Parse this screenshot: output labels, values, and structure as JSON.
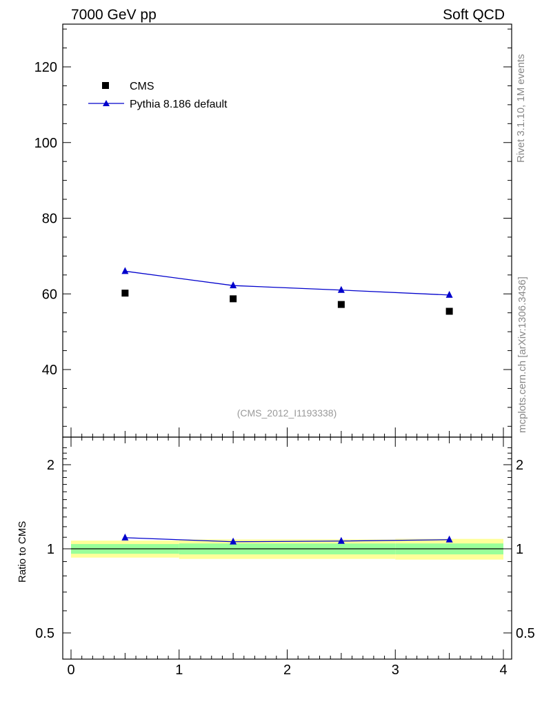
{
  "header": {
    "left": "7000 GeV pp",
    "right": "Soft QCD"
  },
  "side_labels": {
    "rivet": "Rivet 3.1.10,  1M events",
    "source": "mcplots.cern.ch [arXiv:1306.3436]"
  },
  "analysis_tag": "(CMS_2012_I1193338)",
  "colors": {
    "data": "#000000",
    "mc": "#0000cc",
    "band_inner": "#99ff99",
    "band_outer": "#ffff99",
    "tag_text": "#999999"
  },
  "chart_data": [
    {
      "type": "scatter",
      "panel": "main",
      "xlim": [
        0,
        4
      ],
      "ylim": [
        23,
        131
      ],
      "yticks": [
        40,
        60,
        80,
        100,
        120
      ],
      "yticklabels": [
        "40",
        "60",
        "80",
        "100",
        "120"
      ],
      "legend_placement": "top-left",
      "series": [
        {
          "name": "CMS",
          "marker": "square",
          "x": [
            0.5,
            1.5,
            2.5,
            3.5
          ],
          "y": [
            60.2,
            58.7,
            57.2,
            55.4
          ]
        },
        {
          "name": "Pythia 8.186 default",
          "marker": "triangle",
          "line": true,
          "x": [
            0.5,
            1.5,
            2.5,
            3.5
          ],
          "y": [
            66.0,
            62.2,
            61.0,
            59.7
          ]
        }
      ]
    },
    {
      "type": "line",
      "panel": "ratio",
      "xlim": [
        0,
        4
      ],
      "ylim": [
        0.42,
        2.35
      ],
      "log_scale_y": true,
      "ylabel": "Ratio to CMS",
      "xticks": [
        0,
        1,
        2,
        3,
        4
      ],
      "xticklabels": [
        "0",
        "1",
        "2",
        "3",
        "4"
      ],
      "yticks": [
        0.5,
        1,
        2
      ],
      "yticklabels": [
        "0.5",
        "1",
        "2"
      ],
      "bands": {
        "x_edges": [
          0,
          1,
          2,
          3,
          4
        ],
        "inner": [
          [
            0.96,
            1.04
          ],
          [
            0.955,
            1.045
          ],
          [
            0.955,
            1.045
          ],
          [
            0.955,
            1.045
          ]
        ],
        "outer": [
          [
            0.93,
            1.07
          ],
          [
            0.92,
            1.08
          ],
          [
            0.92,
            1.08
          ],
          [
            0.915,
            1.085
          ]
        ]
      },
      "series": [
        {
          "name": "Pythia 8.186 default",
          "marker": "triangle",
          "x": [
            0.5,
            1.5,
            2.5,
            3.5
          ],
          "y": [
            1.096,
            1.06,
            1.066,
            1.078
          ]
        }
      ]
    }
  ]
}
